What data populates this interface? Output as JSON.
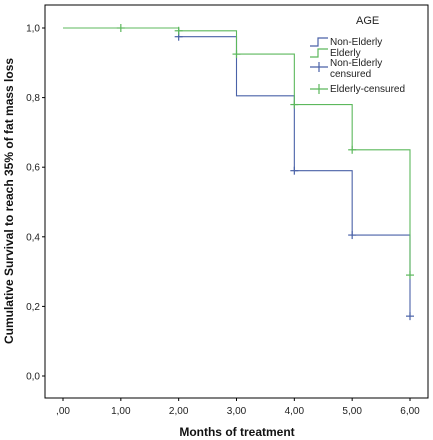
{
  "chart_data": {
    "type": "line",
    "subtype": "kaplan-meier-step",
    "title": "",
    "xlabel": "Months of treatment",
    "ylabel": "Cumulative Survival to reach 35% of fat mass loss",
    "xlim": [
      0,
      6
    ],
    "ylim": [
      0,
      1
    ],
    "x_ticks": [
      0,
      1,
      2,
      3,
      4,
      5,
      6
    ],
    "x_tick_labels": [
      ",00",
      "1,00",
      "2,00",
      "3,00",
      "4,00",
      "5,00",
      "6,00"
    ],
    "y_ticks": [
      0,
      0.2,
      0.4,
      0.6,
      0.8,
      1.0
    ],
    "y_tick_labels": [
      "0,0",
      "0,2",
      "0,4",
      "0,6",
      "0,8",
      "1,0"
    ],
    "grid": false,
    "legend_placement": "top-right",
    "legend": {
      "title": "AGE",
      "entries": [
        {
          "label": "Non-Elderly",
          "kind": "step",
          "series": 0
        },
        {
          "label": "Elderly",
          "kind": "step",
          "series": 1
        },
        {
          "label": "Non-Elderly censured",
          "kind": "censor",
          "series": 0
        },
        {
          "label": "Elderly-censured",
          "kind": "censor",
          "series": 1
        }
      ]
    },
    "series": [
      {
        "name": "Non-Elderly",
        "color": "#4a62a8",
        "steps": [
          {
            "x": 0,
            "y": 1.0
          },
          {
            "x": 2,
            "y": 0.975
          },
          {
            "x": 3,
            "y": 0.805
          },
          {
            "x": 4,
            "y": 0.59
          },
          {
            "x": 5,
            "y": 0.405
          },
          {
            "x": 6,
            "y": 0.172
          }
        ],
        "end_x": 6,
        "censored": [
          {
            "x": 2,
            "y": 0.975
          },
          {
            "x": 4,
            "y": 0.59
          },
          {
            "x": 5,
            "y": 0.405
          },
          {
            "x": 6,
            "y": 0.172
          }
        ]
      },
      {
        "name": "Elderly",
        "color": "#5cb85c",
        "steps": [
          {
            "x": 0,
            "y": 1.0
          },
          {
            "x": 2,
            "y": 0.992
          },
          {
            "x": 3,
            "y": 0.925
          },
          {
            "x": 4,
            "y": 0.78
          },
          {
            "x": 5,
            "y": 0.65
          },
          {
            "x": 6,
            "y": 0.29
          }
        ],
        "end_x": 6,
        "censored": [
          {
            "x": 1,
            "y": 1.0
          },
          {
            "x": 2,
            "y": 0.992
          },
          {
            "x": 3,
            "y": 0.925
          },
          {
            "x": 4,
            "y": 0.78
          },
          {
            "x": 5,
            "y": 0.65
          },
          {
            "x": 6,
            "y": 0.29
          }
        ]
      }
    ]
  }
}
